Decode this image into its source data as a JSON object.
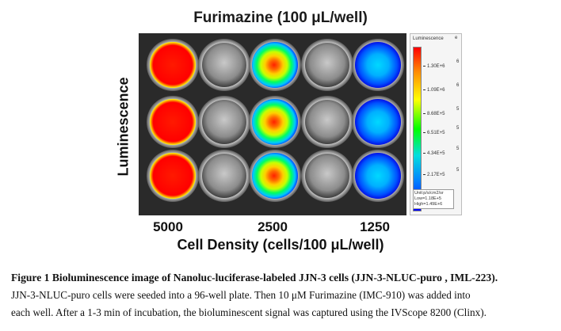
{
  "figure": {
    "title": "Furimazine (100 μL/well)",
    "ylabel": "Luminescence",
    "xlabel": "Cell Density (cells/100 μL/well)",
    "columns": [
      "5000",
      "2500",
      "1250"
    ]
  },
  "colorbar": {
    "title": "Luminescence",
    "exponent": "e",
    "ticks": [
      {
        "label": "1.30E+6",
        "exp": "6"
      },
      {
        "label": "1.09E+6",
        "exp": "6"
      },
      {
        "label": "8.68E+5",
        "exp": "5"
      },
      {
        "label": "6.51E+5",
        "exp": "5"
      },
      {
        "label": "4.34E+5",
        "exp": "5"
      },
      {
        "label": "2.17E+5",
        "exp": "5"
      }
    ],
    "unit": "Unit:p/s/cm2/sr",
    "low": "Low=1.18E+5",
    "high": "High=1.49E+6",
    "colors": {
      "high": "#ff0000",
      "mid": "#00ff00",
      "low": "#0000ff"
    }
  },
  "caption": {
    "title": "Figure 1 Bioluminescence image of Nanoluc-luciferase-labeled JJN-3 cells (JJN-3-NLUC-puro , IML-223).",
    "line1": "JJN-3-NLUC-puro cells were seeded into a 96-well plate. Then 10  μM Furimazine (IMC-910) was added into",
    "line2": "each well. After a 1-3 min of incubation, the bioluminescent signal was captured using the IVScope 8200 (Clinx)."
  }
}
